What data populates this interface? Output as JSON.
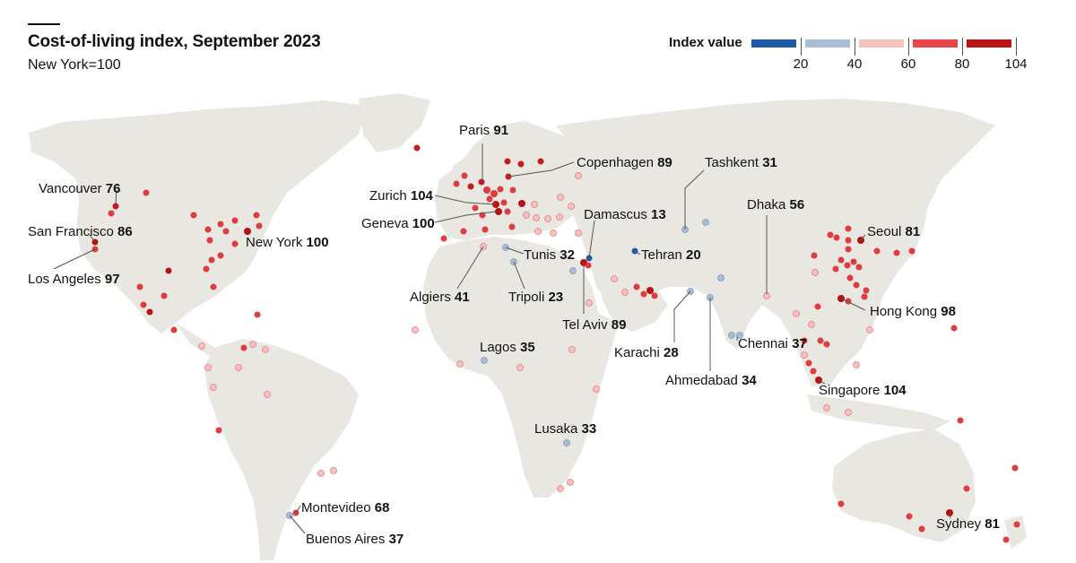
{
  "header": {
    "title": "Cost-of-living index, September 2023",
    "subtitle": "New York=100"
  },
  "legend": {
    "title": "Index value",
    "ticks": [
      "20",
      "40",
      "60",
      "80",
      "104"
    ],
    "colors": [
      "#1f5aa6",
      "#a9bdd8",
      "#f6c2c0",
      "#e8474a",
      "#bb1414"
    ]
  },
  "labels": [
    {
      "name": "Paris",
      "value": "91"
    },
    {
      "name": "Copenhagen",
      "value": "89"
    },
    {
      "name": "Tashkent",
      "value": "31"
    },
    {
      "name": "Vancouver",
      "value": "76"
    },
    {
      "name": "Zurich",
      "value": "104"
    },
    {
      "name": "Geneva",
      "value": "100"
    },
    {
      "name": "Damascus",
      "value": "13"
    },
    {
      "name": "Dhaka",
      "value": "56"
    },
    {
      "name": "San Francisco",
      "value": "86"
    },
    {
      "name": "New York",
      "value": "100"
    },
    {
      "name": "Seoul",
      "value": "81"
    },
    {
      "name": "Tunis",
      "value": "32"
    },
    {
      "name": "Tehran",
      "value": "20"
    },
    {
      "name": "Los Angeles",
      "value": "97"
    },
    {
      "name": "Algiers",
      "value": "41"
    },
    {
      "name": "Tripoli",
      "value": "23"
    },
    {
      "name": "Hong Kong",
      "value": "98"
    },
    {
      "name": "Tel Aviv",
      "value": "89"
    },
    {
      "name": "Karachi",
      "value": "28"
    },
    {
      "name": "Chennai",
      "value": "37"
    },
    {
      "name": "Lagos",
      "value": "35"
    },
    {
      "name": "Ahmedabad",
      "value": "34"
    },
    {
      "name": "Singapore",
      "value": "104"
    },
    {
      "name": "Lusaka",
      "value": "33"
    },
    {
      "name": "Montevideo",
      "value": "68"
    },
    {
      "name": "Sydney",
      "value": "81"
    },
    {
      "name": "Buenos Aires",
      "value": "37"
    }
  ]
}
